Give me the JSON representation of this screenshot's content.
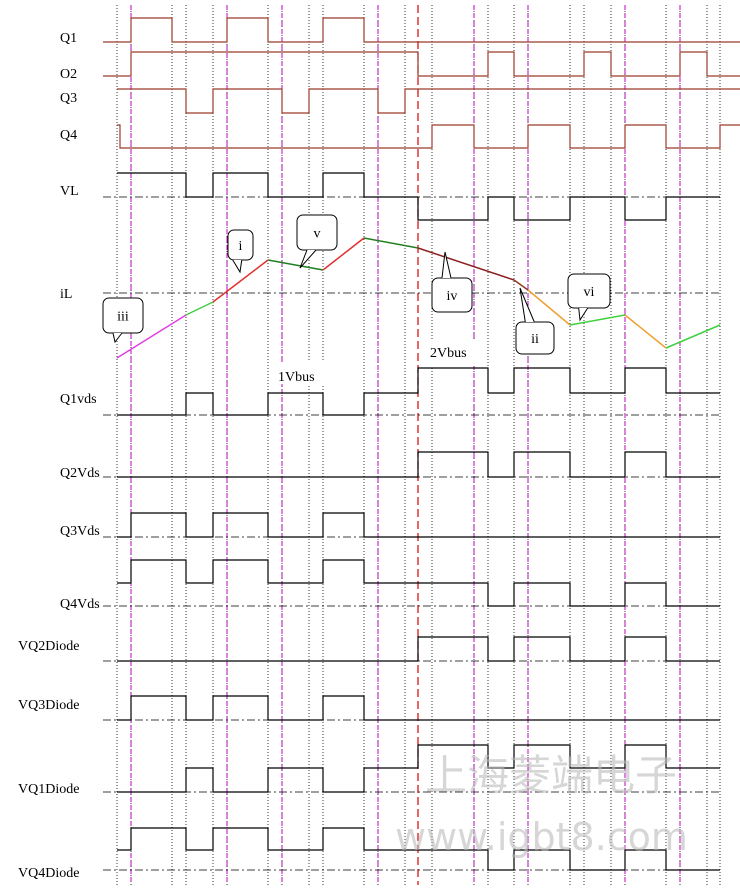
{
  "signals": [
    "Q1",
    "O2",
    "Q3",
    "Q4",
    "VL",
    "iL",
    "Q1vds",
    "Q2Vds",
    "Q3Vds",
    "Q4Vds",
    "VQ2Diode",
    "VQ3Diode",
    "VQ1Diode",
    "VQ4Diode"
  ],
  "callouts": [
    "iii",
    "i",
    "v",
    "iv",
    "ii",
    "vi"
  ],
  "annotations": [
    "1Vbus",
    "2Vbus"
  ],
  "watermark": {
    "company": "上海菱端电子",
    "url": "www.igbt8.com"
  }
}
